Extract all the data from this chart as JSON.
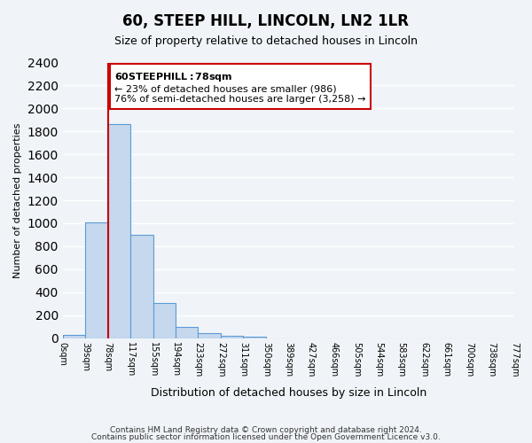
{
  "title": "60, STEEP HILL, LINCOLN, LN2 1LR",
  "subtitle": "Size of property relative to detached houses in Lincoln",
  "xlabel": "Distribution of detached houses by size in Lincoln",
  "ylabel": "Number of detached properties",
  "footnote1": "Contains HM Land Registry data © Crown copyright and database right 2024.",
  "footnote2": "Contains public sector information licensed under the Open Government Licence v3.0.",
  "bin_labels": [
    "0sqm",
    "39sqm",
    "78sqm",
    "117sqm",
    "155sqm",
    "194sqm",
    "233sqm",
    "272sqm",
    "311sqm",
    "350sqm",
    "389sqm",
    "427sqm",
    "466sqm",
    "505sqm",
    "544sqm",
    "583sqm",
    "622sqm",
    "661sqm",
    "700sqm",
    "738sqm",
    "777sqm"
  ],
  "bar_values": [
    25,
    1010,
    1865,
    900,
    305,
    100,
    45,
    18,
    8,
    0,
    0,
    0,
    0,
    0,
    0,
    0,
    0,
    0,
    0,
    0
  ],
  "bar_color": "#c5d8ed",
  "bar_edge_color": "#5b9bd5",
  "red_line_x": 2,
  "annotation_title": "60 STEEP HILL: 78sqm",
  "annotation_line1": "← 23% of detached houses are smaller (986)",
  "annotation_line2": "76% of semi-detached houses are larger (3,258) →",
  "ylim": [
    0,
    2400
  ],
  "yticks": [
    0,
    200,
    400,
    600,
    800,
    1000,
    1200,
    1400,
    1600,
    1800,
    2000,
    2200,
    2400
  ],
  "bg_color": "#f0f4f8",
  "plot_bg_color": "#f0f4f8",
  "grid_color": "#ffffff",
  "annotation_box_color": "#ffffff",
  "annotation_box_edge": "#cc0000",
  "red_line_color": "#cc0000"
}
